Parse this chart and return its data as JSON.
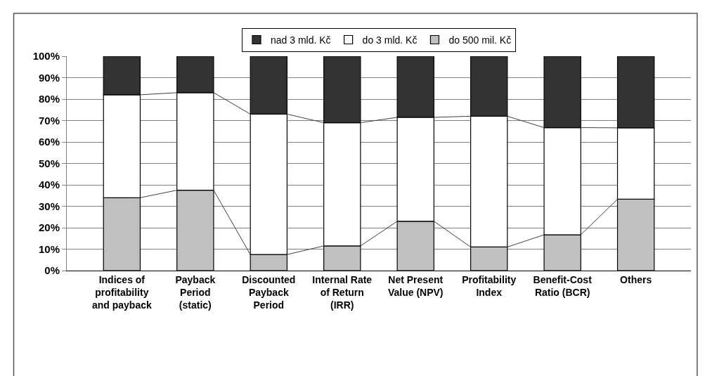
{
  "chart_data": {
    "type": "bar",
    "stacked": true,
    "categories": [
      "Indices of profitability and payback",
      "Payback Period (static)",
      "Discounted Payback Period",
      "Internal Rate of Return (IRR)",
      "Net Present Value (NPV)",
      "Profitability Index",
      "Benefit-Cost Ratio (BCR)",
      "Others"
    ],
    "series": [
      {
        "name": "do 500 mil. Kč",
        "color": "#c0c0c0",
        "values": [
          34,
          37.5,
          7.5,
          11.5,
          23,
          11,
          16.7,
          33.3
        ]
      },
      {
        "name": "do 3 mld. Kč",
        "color": "#ffffff",
        "values": [
          48,
          45.5,
          65.5,
          57.5,
          48.5,
          61,
          50,
          33.3
        ]
      },
      {
        "name": "nad 3 mld. Kč",
        "color": "#333333",
        "values": [
          18,
          17,
          27,
          31,
          28.5,
          28,
          33.3,
          33.4
        ]
      }
    ],
    "ylim": [
      0,
      100
    ],
    "yticks": [
      {
        "value": 0,
        "label": "0%"
      },
      {
        "value": 10,
        "label": "10%"
      },
      {
        "value": 20,
        "label": "20%"
      },
      {
        "value": 30,
        "label": "30%"
      },
      {
        "value": 40,
        "label": "40%"
      },
      {
        "value": 50,
        "label": "50%"
      },
      {
        "value": 60,
        "label": "60%"
      },
      {
        "value": 70,
        "label": "70%"
      },
      {
        "value": 80,
        "label": "80%"
      },
      {
        "value": 90,
        "label": "90%"
      },
      {
        "value": 100,
        "label": "100%"
      }
    ],
    "grid": "y",
    "legend": "top"
  }
}
